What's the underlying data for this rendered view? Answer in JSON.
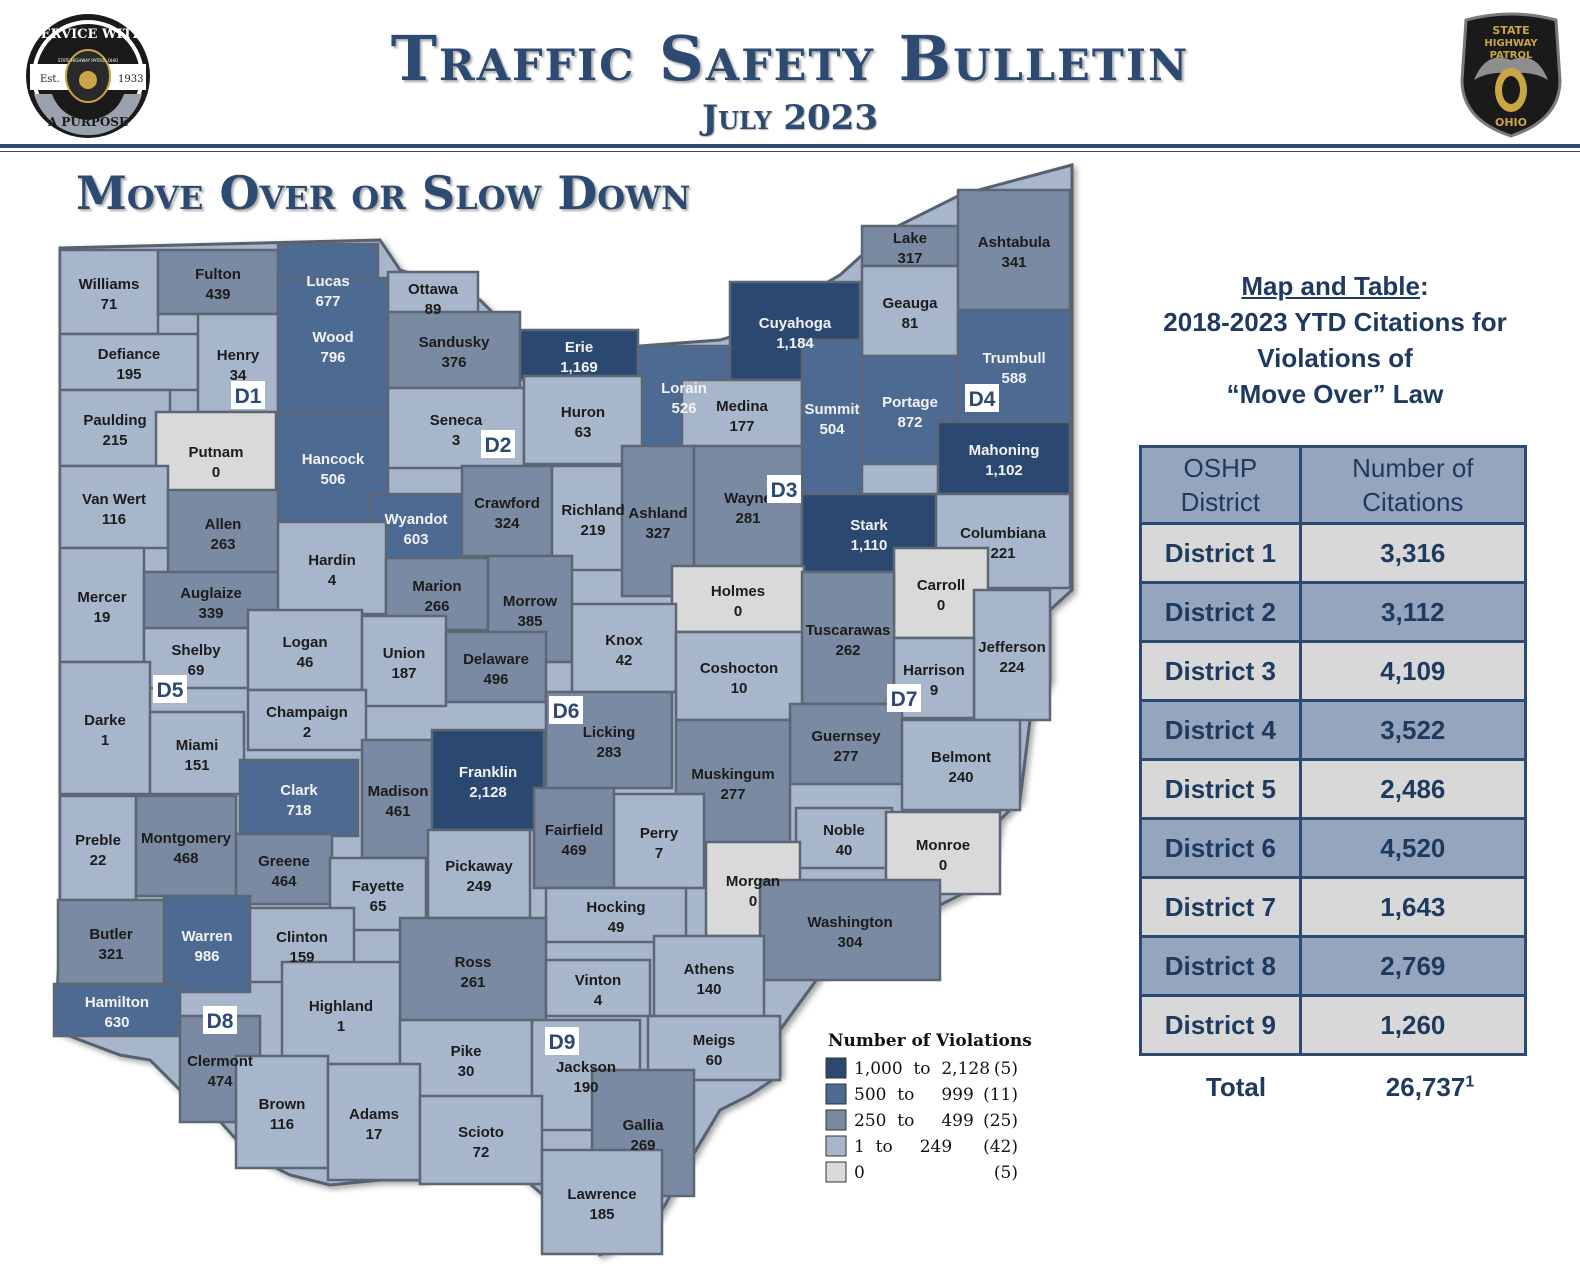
{
  "header": {
    "title": "Traffic Safety Bulletin",
    "subtitle": "July 2023",
    "left_logo": {
      "text_top": "SERVICE WITH",
      "text_bottom": "A PURPOSE",
      "est": "Est.",
      "year": "1933",
      "inner": "STATE HIGHWAY PATROL OHIO"
    },
    "right_logo": {
      "line1": "STATE",
      "line2": "HIGHWAY",
      "line3": "PATROL",
      "line4": "OHIO"
    }
  },
  "section_title": "Move Over or Slow Down",
  "side_panel": {
    "title_underlined": "Map and Table",
    "title_colon": ":",
    "title_line2": "2018-2023 YTD Citations for",
    "title_line3": "Violations of",
    "title_line4": "“Move Over” Law"
  },
  "table": {
    "headers": [
      "OSHP District",
      "Number of Citations"
    ],
    "rows": [
      {
        "district": "District 1",
        "citations": "3,316"
      },
      {
        "district": "District 2",
        "citations": "3,112"
      },
      {
        "district": "District 3",
        "citations": "4,109"
      },
      {
        "district": "District 4",
        "citations": "3,522"
      },
      {
        "district": "District 5",
        "citations": "2,486"
      },
      {
        "district": "District 6",
        "citations": "4,520"
      },
      {
        "district": "District 7",
        "citations": "1,643"
      },
      {
        "district": "District 8",
        "citations": "2,769"
      },
      {
        "district": "District 9",
        "citations": "1,260"
      }
    ],
    "total_label": "Total",
    "total_value": "26,737",
    "total_footnote": "1"
  },
  "legend": {
    "title": "Number of Violations",
    "items": [
      {
        "range": "1,000  to  2,128",
        "count": "(5)",
        "color": "#2a4870"
      },
      {
        "range": "500  to     999",
        "count": "(11)",
        "color": "#4d6a93"
      },
      {
        "range": "250  to     499",
        "count": "(25)",
        "color": "#7a8aa3"
      },
      {
        "range": "1  to     249",
        "count": "(42)",
        "color": "#a8b6cc"
      },
      {
        "range": "0",
        "count": "(5)",
        "color": "#d9d9d9"
      }
    ]
  },
  "districts": [
    "D1",
    "D2",
    "D3",
    "D4",
    "D5",
    "D6",
    "D7",
    "D8",
    "D9"
  ],
  "counties": [
    {
      "name": "Williams",
      "value": "71"
    },
    {
      "name": "Fulton",
      "value": "439"
    },
    {
      "name": "Lucas",
      "value": "677"
    },
    {
      "name": "Ottawa",
      "value": "89"
    },
    {
      "name": "Defiance",
      "value": "195"
    },
    {
      "name": "Henry",
      "value": "34"
    },
    {
      "name": "Wood",
      "value": "796"
    },
    {
      "name": "Sandusky",
      "value": "376"
    },
    {
      "name": "Erie",
      "value": "1,169"
    },
    {
      "name": "Lorain",
      "value": "526"
    },
    {
      "name": "Cuyahoga",
      "value": "1,184"
    },
    {
      "name": "Lake",
      "value": "317"
    },
    {
      "name": "Geauga",
      "value": "81"
    },
    {
      "name": "Ashtabula",
      "value": "341"
    },
    {
      "name": "Trumbull",
      "value": "588"
    },
    {
      "name": "Paulding",
      "value": "215"
    },
    {
      "name": "Putnam",
      "value": "0"
    },
    {
      "name": "Hancock",
      "value": "506"
    },
    {
      "name": "Seneca",
      "value": "3"
    },
    {
      "name": "Huron",
      "value": "63"
    },
    {
      "name": "Medina",
      "value": "177"
    },
    {
      "name": "Summit",
      "value": "504"
    },
    {
      "name": "Portage",
      "value": "872"
    },
    {
      "name": "Mahoning",
      "value": "1,102"
    },
    {
      "name": "Van Wert",
      "value": "116"
    },
    {
      "name": "Allen",
      "value": "263"
    },
    {
      "name": "Wyandot",
      "value": "603"
    },
    {
      "name": "Crawford",
      "value": "324"
    },
    {
      "name": "Richland",
      "value": "219"
    },
    {
      "name": "Ashland",
      "value": "327"
    },
    {
      "name": "Wayne",
      "value": "281"
    },
    {
      "name": "Stark",
      "value": "1,110"
    },
    {
      "name": "Columbiana",
      "value": "221"
    },
    {
      "name": "Mercer",
      "value": "19"
    },
    {
      "name": "Auglaize",
      "value": "339"
    },
    {
      "name": "Hardin",
      "value": "4"
    },
    {
      "name": "Marion",
      "value": "266"
    },
    {
      "name": "Morrow",
      "value": "385"
    },
    {
      "name": "Holmes",
      "value": "0"
    },
    {
      "name": "Carroll",
      "value": "0"
    },
    {
      "name": "Knox",
      "value": "42"
    },
    {
      "name": "Tuscarawas",
      "value": "262"
    },
    {
      "name": "Jefferson",
      "value": "224"
    },
    {
      "name": "Shelby",
      "value": "69"
    },
    {
      "name": "Logan",
      "value": "46"
    },
    {
      "name": "Union",
      "value": "187"
    },
    {
      "name": "Delaware",
      "value": "496"
    },
    {
      "name": "Coshocton",
      "value": "10"
    },
    {
      "name": "Harrison",
      "value": "9"
    },
    {
      "name": "Darke",
      "value": "1"
    },
    {
      "name": "Champaign",
      "value": "2"
    },
    {
      "name": "Licking",
      "value": "283"
    },
    {
      "name": "Miami",
      "value": "151"
    },
    {
      "name": "Guernsey",
      "value": "277"
    },
    {
      "name": "Belmont",
      "value": "240"
    },
    {
      "name": "Clark",
      "value": "718"
    },
    {
      "name": "Madison",
      "value": "461"
    },
    {
      "name": "Franklin",
      "value": "2,128"
    },
    {
      "name": "Muskingum",
      "value": "277"
    },
    {
      "name": "Preble",
      "value": "22"
    },
    {
      "name": "Montgomery",
      "value": "468"
    },
    {
      "name": "Greene",
      "value": "464"
    },
    {
      "name": "Fairfield",
      "value": "469"
    },
    {
      "name": "Perry",
      "value": "7"
    },
    {
      "name": "Noble",
      "value": "40"
    },
    {
      "name": "Monroe",
      "value": "0"
    },
    {
      "name": "Pickaway",
      "value": "249"
    },
    {
      "name": "Fayette",
      "value": "65"
    },
    {
      "name": "Morgan",
      "value": "0"
    },
    {
      "name": "Butler",
      "value": "321"
    },
    {
      "name": "Warren",
      "value": "986"
    },
    {
      "name": "Clinton",
      "value": "159"
    },
    {
      "name": "Hocking",
      "value": "49"
    },
    {
      "name": "Washington",
      "value": "304"
    },
    {
      "name": "Ross",
      "value": "261"
    },
    {
      "name": "Athens",
      "value": "140"
    },
    {
      "name": "Hamilton",
      "value": "630"
    },
    {
      "name": "Highland",
      "value": "1"
    },
    {
      "name": "Vinton",
      "value": "4"
    },
    {
      "name": "Clermont",
      "value": "474"
    },
    {
      "name": "Pike",
      "value": "30"
    },
    {
      "name": "Meigs",
      "value": "60"
    },
    {
      "name": "Jackson",
      "value": "190"
    },
    {
      "name": "Brown",
      "value": "116"
    },
    {
      "name": "Adams",
      "value": "17"
    },
    {
      "name": "Scioto",
      "value": "72"
    },
    {
      "name": "Gallia",
      "value": "269"
    },
    {
      "name": "Lawrence",
      "value": "185"
    }
  ]
}
